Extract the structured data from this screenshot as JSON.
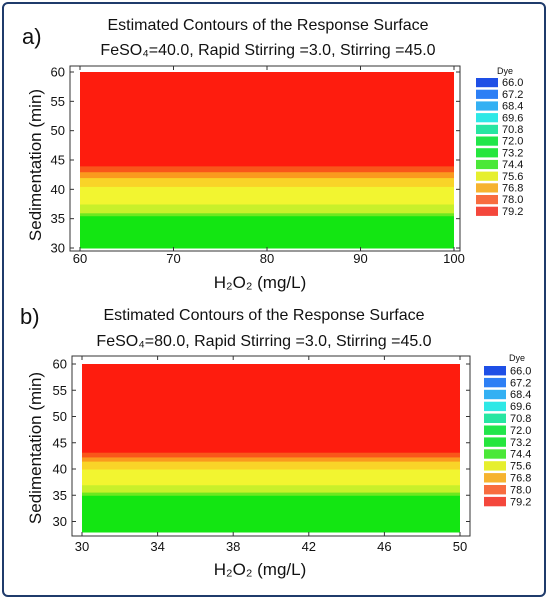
{
  "colors": {
    "frame": "#1f3b6b"
  },
  "legend_colors": [
    "#1e4fe6",
    "#2d7ff5",
    "#33b0f3",
    "#2ee8e6",
    "#27e6a2",
    "#22e64a",
    "#25e63d",
    "#4be838",
    "#e6ef2e",
    "#f6b32f",
    "#f86c3f",
    "#f4473c"
  ],
  "chart_data": [
    {
      "type": "heatmap",
      "panel_label": "a)",
      "title": "Estimated Contours of the Response Surface",
      "subtitle": "FeSO₄=40.0, Rapid Stirring =3.0, Stirring =45.0",
      "xlabel": "H₂O₂ (mg/L)",
      "ylabel": "Sedimentation (min)",
      "xlim": [
        60,
        100
      ],
      "ylim": [
        30,
        60
      ],
      "xticks": [
        "60",
        "70",
        "80",
        "90",
        "100"
      ],
      "yticks": [
        "30",
        "35",
        "40",
        "45",
        "50",
        "55",
        "60"
      ],
      "legend_title": "Dye",
      "legend_entries": [
        "66.0",
        "67.2",
        "68.4",
        "69.6",
        "70.8",
        "72.0",
        "73.2",
        "74.4",
        "75.6",
        "76.8",
        "78.0",
        "79.2"
      ],
      "bands": [
        {
          "y_from": 30.0,
          "y_to": 35.5,
          "color": "#13e612"
        },
        {
          "y_from": 35.5,
          "y_to": 36.0,
          "color": "#6ce81f"
        },
        {
          "y_from": 36.0,
          "y_to": 37.5,
          "color": "#c8f02a"
        },
        {
          "y_from": 37.5,
          "y_to": 40.5,
          "color": "#f2f530"
        },
        {
          "y_from": 40.5,
          "y_to": 42.0,
          "color": "#f9d428"
        },
        {
          "y_from": 42.0,
          "y_to": 43.0,
          "color": "#fa9a1e"
        },
        {
          "y_from": 43.0,
          "y_to": 44.0,
          "color": "#f9561a"
        },
        {
          "y_from": 44.0,
          "y_to": 60.0,
          "color": "#fe1c0e"
        }
      ]
    },
    {
      "type": "heatmap",
      "panel_label": "b)",
      "title": "Estimated Contours of the Response Surface",
      "subtitle": "FeSO₄=80.0, Rapid Stirring =3.0, Stirring =45.0",
      "xlabel": "H₂O₂ (mg/L)",
      "ylabel": "Sedimentation (min)",
      "xlim": [
        30,
        50
      ],
      "ylim": [
        28,
        60
      ],
      "xticks": [
        "30",
        "34",
        "38",
        "42",
        "46",
        "50"
      ],
      "yticks": [
        "30",
        "35",
        "40",
        "45",
        "50",
        "55",
        "60"
      ],
      "legend_title": "Dye",
      "legend_entries": [
        "66.0",
        "67.2",
        "68.4",
        "69.6",
        "70.8",
        "72.0",
        "73.2",
        "74.4",
        "75.6",
        "76.8",
        "78.0",
        "79.2"
      ],
      "bands": [
        {
          "y_from": 28.0,
          "y_to": 35.0,
          "color": "#13e612"
        },
        {
          "y_from": 35.0,
          "y_to": 35.6,
          "color": "#6ce81f"
        },
        {
          "y_from": 35.6,
          "y_to": 37.0,
          "color": "#c8f02a"
        },
        {
          "y_from": 37.0,
          "y_to": 40.0,
          "color": "#f2f530"
        },
        {
          "y_from": 40.0,
          "y_to": 41.5,
          "color": "#f9d428"
        },
        {
          "y_from": 41.5,
          "y_to": 42.3,
          "color": "#fa9a1e"
        },
        {
          "y_from": 42.3,
          "y_to": 43.2,
          "color": "#f9561a"
        },
        {
          "y_from": 43.2,
          "y_to": 60.0,
          "color": "#fe1c0e"
        }
      ]
    }
  ]
}
